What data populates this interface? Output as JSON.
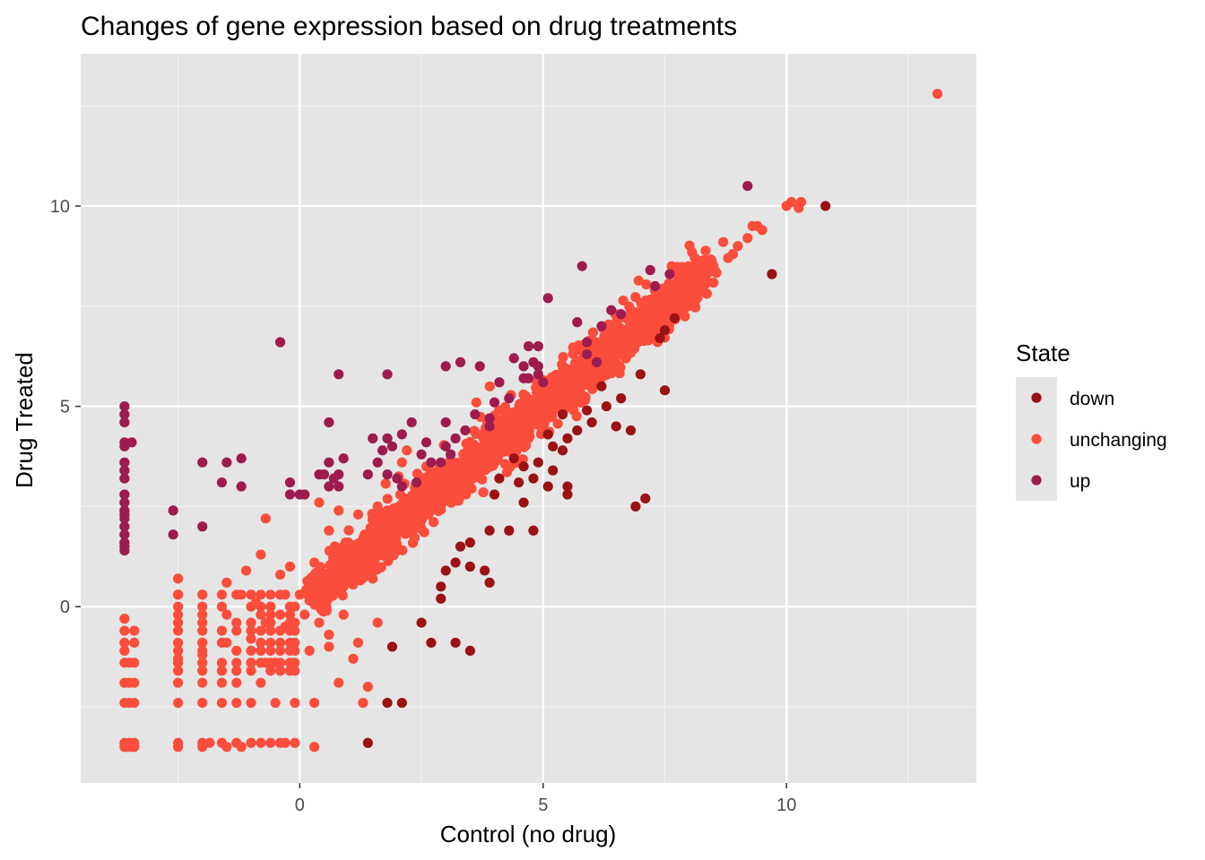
{
  "chart_data": {
    "type": "scatter",
    "title": "Changes of gene expression based on drug treatments",
    "xlabel": "Control (no drug)",
    "ylabel": "Drug Treated",
    "xlim": [
      -4.5,
      13.9
    ],
    "ylim": [
      -4.4,
      13.8
    ],
    "x_ticks": [
      0,
      5,
      10
    ],
    "y_ticks": [
      0,
      5,
      10
    ],
    "x_tick_labels": [
      "0",
      "5",
      "10"
    ],
    "y_tick_labels": [
      "0",
      "5",
      "10"
    ],
    "grid": true,
    "panel_background": "#e5e5e5",
    "legend": {
      "title": "State",
      "position": "right",
      "entries": [
        {
          "label": "down",
          "color": "#9b1215"
        },
        {
          "label": "unchanging",
          "color": "#fa4d3b"
        },
        {
          "label": "up",
          "color": "#9e1b4f"
        }
      ]
    },
    "series": [
      {
        "name": "down",
        "color": "#9b1215",
        "points": [
          [
            10.8,
            10.0
          ],
          [
            9.7,
            8.3
          ],
          [
            7.7,
            7.2
          ],
          [
            7.5,
            6.9
          ],
          [
            7.4,
            6.7
          ],
          [
            7.0,
            5.8
          ],
          [
            7.5,
            5.4
          ],
          [
            6.6,
            5.2
          ],
          [
            6.3,
            5.0
          ],
          [
            5.9,
            4.9
          ],
          [
            6.2,
            5.5
          ],
          [
            5.4,
            4.8
          ],
          [
            5.2,
            4.0
          ],
          [
            4.4,
            3.7
          ],
          [
            5.5,
            4.2
          ],
          [
            6.5,
            4.5
          ],
          [
            6.8,
            4.4
          ],
          [
            5.7,
            4.4
          ],
          [
            6.0,
            4.6
          ],
          [
            5.4,
            3.9
          ],
          [
            5.1,
            4.3
          ],
          [
            4.9,
            3.6
          ],
          [
            4.6,
            3.5
          ],
          [
            4.1,
            3.2
          ],
          [
            4.5,
            3.1
          ],
          [
            4.0,
            2.8
          ],
          [
            4.6,
            2.6
          ],
          [
            5.1,
            3.0
          ],
          [
            5.2,
            3.4
          ],
          [
            5.5,
            3.0
          ],
          [
            4.8,
            3.2
          ],
          [
            6.9,
            2.5
          ],
          [
            7.1,
            2.7
          ],
          [
            5.5,
            2.8
          ],
          [
            4.3,
            1.9
          ],
          [
            4.8,
            1.9
          ],
          [
            3.9,
            1.9
          ],
          [
            3.5,
            1.6
          ],
          [
            3.3,
            1.5
          ],
          [
            3.2,
            1.1
          ],
          [
            3.5,
            1.0
          ],
          [
            3.8,
            0.9
          ],
          [
            3.9,
            0.6
          ],
          [
            2.9,
            0.5
          ],
          [
            2.9,
            0.2
          ],
          [
            3.0,
            0.9
          ],
          [
            2.5,
            -0.4
          ],
          [
            2.7,
            -0.9
          ],
          [
            3.2,
            -0.9
          ],
          [
            3.5,
            -1.1
          ],
          [
            1.9,
            -1.0
          ],
          [
            1.8,
            -2.4
          ],
          [
            2.1,
            -2.4
          ],
          [
            1.4,
            -3.4
          ]
        ]
      },
      {
        "name": "up",
        "color": "#9e1b4f",
        "points": [
          [
            9.2,
            10.5
          ],
          [
            5.8,
            8.5
          ],
          [
            7.2,
            8.4
          ],
          [
            7.6,
            8.3
          ],
          [
            7.3,
            8.0
          ],
          [
            6.6,
            7.3
          ],
          [
            6.4,
            7.4
          ],
          [
            5.1,
            7.7
          ],
          [
            5.7,
            7.1
          ],
          [
            6.2,
            7.0
          ],
          [
            4.7,
            6.5
          ],
          [
            4.9,
            6.5
          ],
          [
            5.9,
            6.6
          ],
          [
            6.1,
            6.1
          ],
          [
            5.9,
            6.3
          ],
          [
            4.8,
            6.1
          ],
          [
            4.6,
            6.0
          ],
          [
            4.9,
            6.0
          ],
          [
            4.4,
            6.2
          ],
          [
            4.6,
            5.7
          ],
          [
            4.7,
            5.7
          ],
          [
            4.9,
            5.8
          ],
          [
            5.0,
            5.6
          ],
          [
            4.1,
            5.6
          ],
          [
            3.7,
            6.0
          ],
          [
            3.0,
            6.0
          ],
          [
            3.3,
            6.1
          ],
          [
            1.8,
            5.8
          ],
          [
            0.8,
            5.8
          ],
          [
            -0.4,
            6.6
          ],
          [
            4.3,
            5.2
          ],
          [
            4.0,
            5.1
          ],
          [
            3.9,
            4.7
          ],
          [
            3.9,
            4.5
          ],
          [
            3.6,
            4.8
          ],
          [
            3.4,
            4.4
          ],
          [
            3.0,
            4.6
          ],
          [
            3.2,
            4.2
          ],
          [
            2.3,
            4.6
          ],
          [
            2.6,
            4.1
          ],
          [
            3.0,
            4.0
          ],
          [
            3.1,
            3.8
          ],
          [
            2.9,
            3.6
          ],
          [
            2.7,
            3.6
          ],
          [
            2.5,
            3.8
          ],
          [
            1.8,
            4.2
          ],
          [
            1.9,
            4.0
          ],
          [
            2.1,
            4.3
          ],
          [
            1.5,
            4.2
          ],
          [
            1.7,
            3.9
          ],
          [
            1.6,
            3.6
          ],
          [
            1.4,
            3.3
          ],
          [
            1.8,
            3.3
          ],
          [
            2.0,
            3.2
          ],
          [
            0.6,
            4.6
          ],
          [
            0.6,
            3.6
          ],
          [
            0.9,
            3.7
          ],
          [
            0.8,
            3.3
          ],
          [
            0.7,
            3.2
          ],
          [
            0.8,
            3.0
          ],
          [
            0.4,
            3.3
          ],
          [
            0.6,
            3.0
          ],
          [
            -0.2,
            3.1
          ],
          [
            -0.2,
            2.8
          ],
          [
            0.0,
            2.8
          ],
          [
            0.1,
            2.8
          ],
          [
            0.5,
            3.3
          ],
          [
            2.4,
            3.1
          ],
          [
            2.1,
            3.0
          ],
          [
            -1.2,
            3.7
          ],
          [
            -2.0,
            3.6
          ],
          [
            -1.5,
            3.6
          ],
          [
            -1.6,
            3.1
          ],
          [
            -1.2,
            3.0
          ],
          [
            -2.6,
            2.4
          ],
          [
            -2.6,
            1.8
          ],
          [
            -2.0,
            2.0
          ],
          [
            -3.6,
            5.0
          ],
          [
            -3.6,
            4.8
          ],
          [
            -3.6,
            4.6
          ],
          [
            -3.6,
            4.1
          ],
          [
            -3.6,
            4.0
          ],
          [
            -3.45,
            4.1
          ],
          [
            -3.6,
            3.6
          ],
          [
            -3.6,
            3.4
          ],
          [
            -3.6,
            3.2
          ],
          [
            -3.6,
            2.8
          ],
          [
            -3.6,
            2.6
          ],
          [
            -3.6,
            2.4
          ],
          [
            -3.6,
            2.3
          ],
          [
            -3.6,
            2.2
          ],
          [
            -3.6,
            2.0
          ],
          [
            -3.6,
            1.8
          ],
          [
            -3.6,
            1.6
          ],
          [
            -3.6,
            1.5
          ],
          [
            -3.6,
            1.4
          ]
        ]
      },
      {
        "name": "unchanging",
        "color": "#fa4d3b",
        "points": [
          [
            13.1,
            12.8
          ],
          [
            10.0,
            10.0
          ],
          [
            10.1,
            10.1
          ],
          [
            10.3,
            10.1
          ],
          [
            10.25,
            9.95
          ],
          [
            9.4,
            9.5
          ],
          [
            9.3,
            9.5
          ],
          [
            9.5,
            9.4
          ],
          [
            9.2,
            9.2
          ],
          [
            9.0,
            9.0
          ],
          [
            8.7,
            9.1
          ],
          [
            8.8,
            8.7
          ],
          [
            8.9,
            8.8
          ],
          [
            8.5,
            8.4
          ],
          [
            8.4,
            8.5
          ],
          [
            8.2,
            8.0
          ],
          [
            0.4,
            2.6
          ],
          [
            -0.7,
            2.2
          ],
          [
            0.8,
            2.4
          ],
          [
            1.2,
            2.3
          ],
          [
            1.6,
            2.5
          ],
          [
            2.1,
            3.6
          ],
          [
            2.2,
            3.9
          ],
          [
            2.6,
            3.5
          ],
          [
            0.9,
            1.5
          ],
          [
            0.6,
            1.9
          ],
          [
            1.8,
            2.4
          ],
          [
            4.7,
            4.2
          ],
          [
            5.5,
            5.8
          ],
          [
            6.2,
            6.6
          ],
          [
            6.6,
            6.3
          ],
          [
            6.8,
            7.4
          ],
          [
            7.1,
            6.9
          ],
          [
            2.5,
            2.9
          ],
          [
            2.8,
            3.2
          ],
          [
            3.3,
            3.5
          ],
          [
            3.7,
            3.8
          ],
          [
            4.1,
            4.3
          ],
          [
            4.5,
            4.4
          ],
          [
            3.1,
            2.7
          ],
          [
            2.2,
            2.5
          ],
          [
            1.4,
            1.2
          ],
          [
            1.0,
            1.6
          ],
          [
            0.7,
            0.8
          ],
          [
            0.5,
            0.3
          ],
          [
            0.9,
            0.5
          ],
          [
            1.3,
            0.9
          ],
          [
            1.7,
            1.9
          ],
          [
            1.5,
            0.7
          ],
          [
            2.0,
            1.4
          ],
          [
            2.3,
            2.0
          ],
          [
            0.2,
            0.6
          ],
          [
            0.3,
            1.1
          ],
          [
            -2.5,
            0.7
          ],
          [
            -2.5,
            0.3
          ],
          [
            -2.5,
            0.0
          ],
          [
            -2.0,
            0.3
          ],
          [
            -1.5,
            0.6
          ],
          [
            -1.1,
            0.9
          ],
          [
            -0.8,
            1.3
          ],
          [
            -0.4,
            0.8
          ],
          [
            -0.2,
            1.0
          ],
          [
            0.0,
            0.3
          ],
          [
            -0.3,
            -0.5
          ],
          [
            -0.7,
            -0.4
          ],
          [
            -1.0,
            -0.8
          ],
          [
            -1.5,
            -0.9
          ],
          [
            -2.0,
            -1.2
          ],
          [
            -2.5,
            -1.3
          ],
          [
            -0.5,
            -1.4
          ],
          [
            0.2,
            -1.1
          ],
          [
            0.6,
            -0.7
          ],
          [
            1.2,
            -0.9
          ],
          [
            0.9,
            -0.2
          ],
          [
            0.4,
            -0.4
          ],
          [
            1.1,
            -1.3
          ],
          [
            1.6,
            -0.4
          ],
          [
            -3.6,
            -0.3
          ],
          [
            -3.6,
            -0.6
          ],
          [
            -3.4,
            -0.6
          ],
          [
            -3.6,
            -0.9
          ],
          [
            -3.4,
            -0.9
          ],
          [
            -3.6,
            -1.1
          ],
          [
            -3.6,
            -1.4
          ],
          [
            -3.5,
            -1.4
          ],
          [
            -3.4,
            -1.4
          ],
          [
            -3.6,
            -1.9
          ],
          [
            -3.5,
            -1.9
          ],
          [
            -3.4,
            -1.9
          ],
          [
            -3.6,
            -2.4
          ],
          [
            -3.5,
            -2.4
          ],
          [
            -3.4,
            -2.4
          ],
          [
            -3.6,
            -3.4
          ],
          [
            -3.55,
            -3.5
          ],
          [
            -3.5,
            -3.4
          ],
          [
            -3.45,
            -3.5
          ],
          [
            -3.4,
            -3.4
          ],
          [
            -3.6,
            -3.5
          ],
          [
            -3.4,
            -3.5
          ],
          [
            -2.5,
            -1.9
          ],
          [
            -2.5,
            -2.4
          ],
          [
            -2.5,
            -3.4
          ],
          [
            -2.5,
            -3.5
          ],
          [
            -2.0,
            -1.9
          ],
          [
            -2.0,
            -2.4
          ],
          [
            -2.0,
            -3.4
          ],
          [
            -2.0,
            -3.5
          ],
          [
            -1.85,
            -3.4
          ],
          [
            -1.6,
            -1.9
          ],
          [
            -1.6,
            -2.4
          ],
          [
            -1.6,
            -3.4
          ],
          [
            -1.5,
            -3.5
          ],
          [
            -1.3,
            -1.9
          ],
          [
            -1.3,
            -2.4
          ],
          [
            -1.3,
            -3.4
          ],
          [
            -1.2,
            -3.5
          ],
          [
            -1.0,
            -2.4
          ],
          [
            -1.0,
            -3.4
          ],
          [
            -0.8,
            -1.9
          ],
          [
            -0.8,
            -3.4
          ],
          [
            -0.7,
            -1.4
          ],
          [
            -0.6,
            -3.4
          ],
          [
            -0.5,
            -2.4
          ],
          [
            -0.4,
            -3.4
          ],
          [
            -0.3,
            -3.4
          ],
          [
            -0.1,
            -3.4
          ],
          [
            -0.1,
            -2.4
          ],
          [
            -0.1,
            -1.4
          ],
          [
            0.3,
            -2.4
          ],
          [
            0.3,
            -3.5
          ],
          [
            0.8,
            -1.9
          ],
          [
            1.3,
            -2.4
          ],
          [
            1.4,
            -2.0
          ],
          [
            0.6,
            -1.0
          ],
          [
            -2.0,
            -0.4
          ],
          [
            -2.0,
            -0.9
          ],
          [
            -1.5,
            -0.2
          ],
          [
            -1.2,
            0.3
          ],
          [
            -0.9,
            0.1
          ],
          [
            -0.6,
            0.0
          ],
          [
            -0.3,
            0.3
          ],
          [
            0.1,
            -0.2
          ]
        ],
        "band": {
          "description_key": "dense diagonal cloud",
          "x_from": 0.2,
          "x_to": 8.4,
          "count": 2200,
          "grid_x": [
            -2.5,
            -2.0,
            -1.6,
            -1.3,
            -1.0,
            -0.8,
            -0.6,
            -0.4,
            -0.2,
            -0.1
          ],
          "grid_y": [
            0.3,
            0.0,
            -0.2,
            -0.4,
            -0.6,
            -0.9,
            -1.1,
            -1.4,
            -1.6
          ]
        }
      }
    ]
  }
}
